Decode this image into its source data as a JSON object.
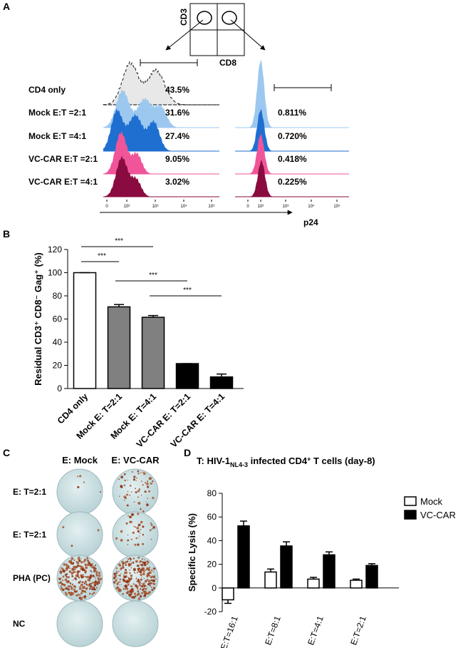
{
  "panel_a": {
    "letter": "A",
    "gate_y": "CD3",
    "gate_x": "CD8",
    "axis_label": "p24",
    "ticks_left": [
      "0",
      "10²",
      "10³",
      "10⁴",
      "10⁵"
    ],
    "ticks_right": [
      "0",
      "10²",
      "10³",
      "10⁴",
      "10⁵"
    ],
    "rows": [
      {
        "label": "CD4 only",
        "color": "#e6e6e6",
        "cd4": "43.5%"
      },
      {
        "label": "Mock E:T =2:1",
        "color": "#9cc8f0",
        "cd4": "31.6%",
        "cd8": "0.811%"
      },
      {
        "label": "Mock E:T =4:1",
        "color": "#1f6fd0",
        "cd4": "27.4%",
        "cd8": "0.720%"
      },
      {
        "label": "VC-CAR E:T =2:1",
        "color": "#f0559a",
        "cd4": "9.05%",
        "cd8": "0.418%"
      },
      {
        "label": "VC-CAR E:T =4:1",
        "color": "#8a0b3f",
        "cd4": "3.02%",
        "cd8": "0.225%"
      }
    ]
  },
  "panel_c": {
    "letter": "C",
    "columns": [
      "E: Mock",
      "E: VC-CAR"
    ],
    "rows": [
      "E: T=2:1",
      "E: T=2:1",
      "PHA (PC)",
      "NC"
    ]
  },
  "chart_data": [
    {
      "type": "bar",
      "letter": "B",
      "ylabel": "Residual CD3⁺ CD8⁻ Gag⁺ (%)",
      "categories": [
        "CD4 only",
        "Mock E: T=2:1",
        "Mock E: T=4:1",
        "VC-CAR E: T=2:1",
        "VC-CAR E: T=4:1"
      ],
      "values": [
        100,
        70.5,
        61.5,
        21.5,
        10
      ],
      "errors": [
        0,
        2,
        1.5,
        0,
        2.5
      ],
      "colors": [
        "#ffffff",
        "#808080",
        "#808080",
        "#000000",
        "#000000"
      ],
      "ylim": [
        0,
        120
      ],
      "yticks": [
        0,
        20,
        40,
        60,
        80,
        100,
        120
      ],
      "annotations": [
        "***",
        "***",
        "***",
        "***"
      ]
    },
    {
      "type": "grouped_bar",
      "letter": "D",
      "title_parts": [
        "T: HIV-1",
        "NL4-3",
        " infected CD4",
        "+",
        " T cells (day-8)"
      ],
      "ylabel": "Specific Lysis (%)",
      "categories": [
        "E:T=16:1",
        "E:T=8:1",
        "E:T=4:1",
        "E:T=2:1"
      ],
      "series": [
        {
          "name": "Mock",
          "color": "#ffffff",
          "values": [
            -10,
            13.5,
            7.5,
            6.5
          ],
          "errors": [
            3,
            2.5,
            1.5,
            1
          ]
        },
        {
          "name": "VC-CAR",
          "color": "#000000",
          "values": [
            52.5,
            35.5,
            28,
            19
          ],
          "errors": [
            4,
            3.5,
            2.5,
            1.5
          ]
        }
      ],
      "ylim": [
        -20,
        80
      ],
      "yticks": [
        -20,
        0,
        20,
        40,
        60,
        80
      ],
      "legend": "right"
    }
  ]
}
